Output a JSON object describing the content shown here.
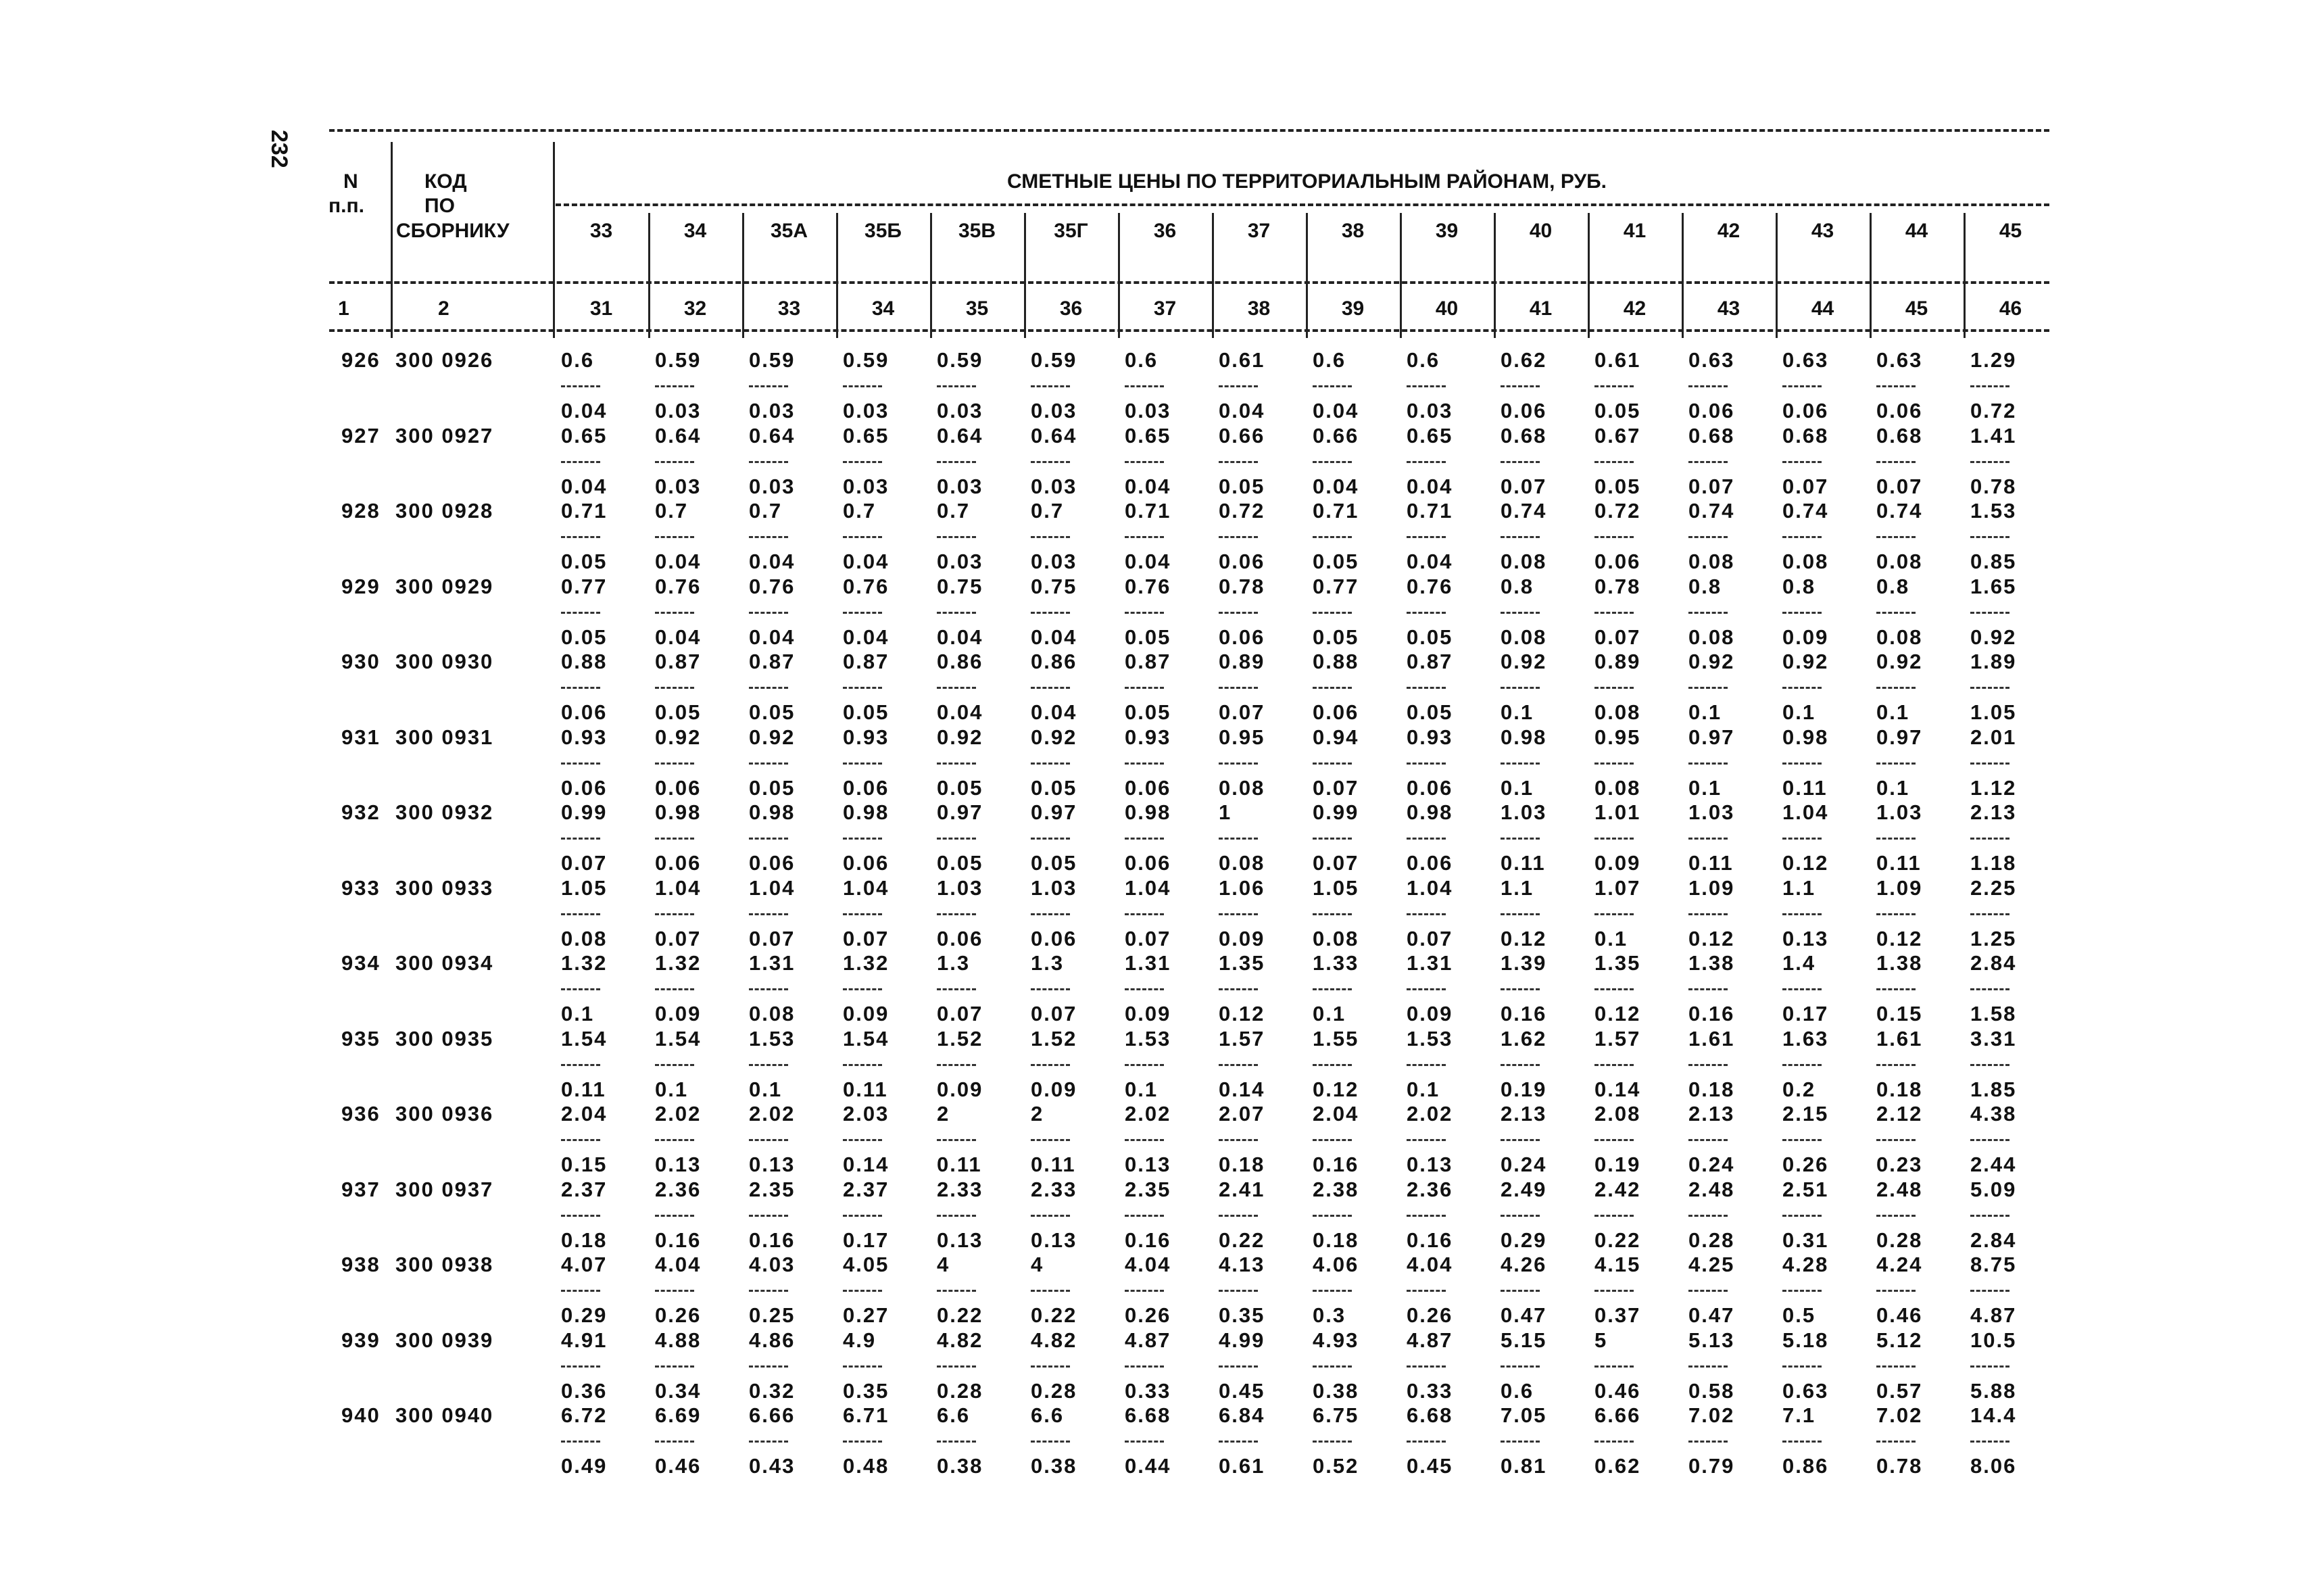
{
  "page_number": "232",
  "header": {
    "col_n": [
      "N",
      "п.п."
    ],
    "col_code": [
      "КОД",
      "ПО",
      "СБОРНИКУ"
    ],
    "title": "СМЕТНЫЕ ЦЕНЫ ПО ТЕРРИТОРИАЛЬНЫМ РАЙОНАМ, РУБ.",
    "districts": [
      "33",
      "34",
      "35А",
      "35Б",
      "35В",
      "35Г",
      "36",
      "37",
      "38",
      "39",
      "40",
      "41",
      "42",
      "43",
      "44",
      "45"
    ],
    "column_numbers": [
      "1",
      "2",
      "31",
      "32",
      "33",
      "34",
      "35",
      "36",
      "37",
      "38",
      "39",
      "40",
      "41",
      "42",
      "43",
      "44",
      "45",
      "46"
    ]
  },
  "rows": [
    {
      "n": "926",
      "code": "300 0926",
      "num": [
        "0.6",
        "0.59",
        "0.59",
        "0.59",
        "0.59",
        "0.59",
        "0.6",
        "0.61",
        "0.6",
        "0.6",
        "0.62",
        "0.61",
        "0.63",
        "0.63",
        "0.63",
        "1.29"
      ],
      "den": [
        "0.04",
        "0.03",
        "0.03",
        "0.03",
        "0.03",
        "0.03",
        "0.03",
        "0.04",
        "0.04",
        "0.03",
        "0.06",
        "0.05",
        "0.06",
        "0.06",
        "0.06",
        "0.72"
      ]
    },
    {
      "n": "927",
      "code": "300 0927",
      "num": [
        "0.65",
        "0.64",
        "0.64",
        "0.65",
        "0.64",
        "0.64",
        "0.65",
        "0.66",
        "0.66",
        "0.65",
        "0.68",
        "0.67",
        "0.68",
        "0.68",
        "0.68",
        "1.41"
      ],
      "den": [
        "0.04",
        "0.03",
        "0.03",
        "0.03",
        "0.03",
        "0.03",
        "0.04",
        "0.05",
        "0.04",
        "0.04",
        "0.07",
        "0.05",
        "0.07",
        "0.07",
        "0.07",
        "0.78"
      ]
    },
    {
      "n": "928",
      "code": "300 0928",
      "num": [
        "0.71",
        "0.7",
        "0.7",
        "0.7",
        "0.7",
        "0.7",
        "0.71",
        "0.72",
        "0.71",
        "0.71",
        "0.74",
        "0.72",
        "0.74",
        "0.74",
        "0.74",
        "1.53"
      ],
      "den": [
        "0.05",
        "0.04",
        "0.04",
        "0.04",
        "0.03",
        "0.03",
        "0.04",
        "0.06",
        "0.05",
        "0.04",
        "0.08",
        "0.06",
        "0.08",
        "0.08",
        "0.08",
        "0.85"
      ]
    },
    {
      "n": "929",
      "code": "300 0929",
      "num": [
        "0.77",
        "0.76",
        "0.76",
        "0.76",
        "0.75",
        "0.75",
        "0.76",
        "0.78",
        "0.77",
        "0.76",
        "0.8",
        "0.78",
        "0.8",
        "0.8",
        "0.8",
        "1.65"
      ],
      "den": [
        "0.05",
        "0.04",
        "0.04",
        "0.04",
        "0.04",
        "0.04",
        "0.05",
        "0.06",
        "0.05",
        "0.05",
        "0.08",
        "0.07",
        "0.08",
        "0.09",
        "0.08",
        "0.92"
      ]
    },
    {
      "n": "930",
      "code": "300 0930",
      "num": [
        "0.88",
        "0.87",
        "0.87",
        "0.87",
        "0.86",
        "0.86",
        "0.87",
        "0.89",
        "0.88",
        "0.87",
        "0.92",
        "0.89",
        "0.92",
        "0.92",
        "0.92",
        "1.89"
      ],
      "den": [
        "0.06",
        "0.05",
        "0.05",
        "0.05",
        "0.04",
        "0.04",
        "0.05",
        "0.07",
        "0.06",
        "0.05",
        "0.1",
        "0.08",
        "0.1",
        "0.1",
        "0.1",
        "1.05"
      ]
    },
    {
      "n": "931",
      "code": "300 0931",
      "num": [
        "0.93",
        "0.92",
        "0.92",
        "0.93",
        "0.92",
        "0.92",
        "0.93",
        "0.95",
        "0.94",
        "0.93",
        "0.98",
        "0.95",
        "0.97",
        "0.98",
        "0.97",
        "2.01"
      ],
      "den": [
        "0.06",
        "0.06",
        "0.05",
        "0.06",
        "0.05",
        "0.05",
        "0.06",
        "0.08",
        "0.07",
        "0.06",
        "0.1",
        "0.08",
        "0.1",
        "0.11",
        "0.1",
        "1.12"
      ]
    },
    {
      "n": "932",
      "code": "300 0932",
      "num": [
        "0.99",
        "0.98",
        "0.98",
        "0.98",
        "0.97",
        "0.97",
        "0.98",
        "1",
        "0.99",
        "0.98",
        "1.03",
        "1.01",
        "1.03",
        "1.04",
        "1.03",
        "2.13"
      ],
      "den": [
        "0.07",
        "0.06",
        "0.06",
        "0.06",
        "0.05",
        "0.05",
        "0.06",
        "0.08",
        "0.07",
        "0.06",
        "0.11",
        "0.09",
        "0.11",
        "0.12",
        "0.11",
        "1.18"
      ]
    },
    {
      "n": "933",
      "code": "300 0933",
      "num": [
        "1.05",
        "1.04",
        "1.04",
        "1.04",
        "1.03",
        "1.03",
        "1.04",
        "1.06",
        "1.05",
        "1.04",
        "1.1",
        "1.07",
        "1.09",
        "1.1",
        "1.09",
        "2.25"
      ],
      "den": [
        "0.08",
        "0.07",
        "0.07",
        "0.07",
        "0.06",
        "0.06",
        "0.07",
        "0.09",
        "0.08",
        "0.07",
        "0.12",
        "0.1",
        "0.12",
        "0.13",
        "0.12",
        "1.25"
      ]
    },
    {
      "n": "934",
      "code": "300 0934",
      "num": [
        "1.32",
        "1.32",
        "1.31",
        "1.32",
        "1.3",
        "1.3",
        "1.31",
        "1.35",
        "1.33",
        "1.31",
        "1.39",
        "1.35",
        "1.38",
        "1.4",
        "1.38",
        "2.84"
      ],
      "den": [
        "0.1",
        "0.09",
        "0.08",
        "0.09",
        "0.07",
        "0.07",
        "0.09",
        "0.12",
        "0.1",
        "0.09",
        "0.16",
        "0.12",
        "0.16",
        "0.17",
        "0.15",
        "1.58"
      ]
    },
    {
      "n": "935",
      "code": "300 0935",
      "num": [
        "1.54",
        "1.54",
        "1.53",
        "1.54",
        "1.52",
        "1.52",
        "1.53",
        "1.57",
        "1.55",
        "1.53",
        "1.62",
        "1.57",
        "1.61",
        "1.63",
        "1.61",
        "3.31"
      ],
      "den": [
        "0.11",
        "0.1",
        "0.1",
        "0.11",
        "0.09",
        "0.09",
        "0.1",
        "0.14",
        "0.12",
        "0.1",
        "0.19",
        "0.14",
        "0.18",
        "0.2",
        "0.18",
        "1.85"
      ]
    },
    {
      "n": "936",
      "code": "300 0936",
      "num": [
        "2.04",
        "2.02",
        "2.02",
        "2.03",
        "2",
        "2",
        "2.02",
        "2.07",
        "2.04",
        "2.02",
        "2.13",
        "2.08",
        "2.13",
        "2.15",
        "2.12",
        "4.38"
      ],
      "den": [
        "0.15",
        "0.13",
        "0.13",
        "0.14",
        "0.11",
        "0.11",
        "0.13",
        "0.18",
        "0.16",
        "0.13",
        "0.24",
        "0.19",
        "0.24",
        "0.26",
        "0.23",
        "2.44"
      ]
    },
    {
      "n": "937",
      "code": "300 0937",
      "num": [
        "2.37",
        "2.36",
        "2.35",
        "2.37",
        "2.33",
        "2.33",
        "2.35",
        "2.41",
        "2.38",
        "2.36",
        "2.49",
        "2.42",
        "2.48",
        "2.51",
        "2.48",
        "5.09"
      ],
      "den": [
        "0.18",
        "0.16",
        "0.16",
        "0.17",
        "0.13",
        "0.13",
        "0.16",
        "0.22",
        "0.18",
        "0.16",
        "0.29",
        "0.22",
        "0.28",
        "0.31",
        "0.28",
        "2.84"
      ]
    },
    {
      "n": "938",
      "code": "300 0938",
      "num": [
        "4.07",
        "4.04",
        "4.03",
        "4.05",
        "4",
        "4",
        "4.04",
        "4.13",
        "4.06",
        "4.04",
        "4.26",
        "4.15",
        "4.25",
        "4.28",
        "4.24",
        "8.75"
      ],
      "den": [
        "0.29",
        "0.26",
        "0.25",
        "0.27",
        "0.22",
        "0.22",
        "0.26",
        "0.35",
        "0.3",
        "0.26",
        "0.47",
        "0.37",
        "0.47",
        "0.5",
        "0.46",
        "4.87"
      ]
    },
    {
      "n": "939",
      "code": "300 0939",
      "num": [
        "4.91",
        "4.88",
        "4.86",
        "4.9",
        "4.82",
        "4.82",
        "4.87",
        "4.99",
        "4.93",
        "4.87",
        "5.15",
        "5",
        "5.13",
        "5.18",
        "5.12",
        "10.5"
      ],
      "den": [
        "0.36",
        "0.34",
        "0.32",
        "0.35",
        "0.28",
        "0.28",
        "0.33",
        "0.45",
        "0.38",
        "0.33",
        "0.6",
        "0.46",
        "0.58",
        "0.63",
        "0.57",
        "5.88"
      ]
    },
    {
      "n": "940",
      "code": "300 0940",
      "num": [
        "6.72",
        "6.69",
        "6.66",
        "6.71",
        "6.6",
        "6.6",
        "6.68",
        "6.84",
        "6.75",
        "6.68",
        "7.05",
        "6.66",
        "7.02",
        "7.1",
        "7.02",
        "14.4"
      ],
      "den": [
        "0.49",
        "0.46",
        "0.43",
        "0.48",
        "0.38",
        "0.38",
        "0.44",
        "0.61",
        "0.52",
        "0.45",
        "0.81",
        "0.62",
        "0.79",
        "0.86",
        "0.78",
        "8.06"
      ]
    }
  ]
}
